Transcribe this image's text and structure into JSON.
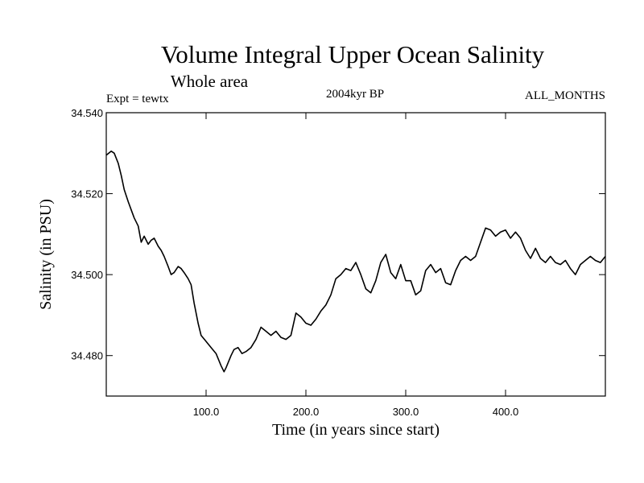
{
  "header": {
    "title": "Volume Integral Upper Ocean Salinity",
    "subtitle": "Whole area",
    "experiment": "Expt = tewtx",
    "period": "2004kyr BP",
    "months": "ALL_MONTHS"
  },
  "chart_data": {
    "type": "line",
    "title": "Volume Integral Upper Ocean Salinity",
    "xlabel": "Time (in years since start)",
    "ylabel": "Salinity (in PSU)",
    "xlim": [
      0,
      500
    ],
    "ylim": [
      34.47,
      34.54
    ],
    "x_ticks": [
      100,
      200,
      300,
      400
    ],
    "x_tick_labels": [
      "100.0",
      "200.0",
      "300.0",
      "400.0"
    ],
    "y_ticks": [
      34.48,
      34.5,
      34.52,
      34.54
    ],
    "y_tick_labels": [
      "34.480",
      "34.500",
      "34.520",
      "34.540"
    ],
    "grid": false,
    "series": [
      {
        "name": "Salinity",
        "color": "#000000",
        "x": [
          0,
          5,
          8,
          12,
          15,
          18,
          22,
          25,
          28,
          32,
          35,
          38,
          42,
          45,
          48,
          52,
          55,
          58,
          62,
          65,
          68,
          72,
          75,
          78,
          82,
          85,
          88,
          92,
          95,
          100,
          105,
          110,
          115,
          118,
          120,
          125,
          128,
          132,
          136,
          140,
          145,
          150,
          155,
          160,
          165,
          170,
          175,
          180,
          185,
          190,
          195,
          200,
          205,
          210,
          215,
          220,
          225,
          230,
          235,
          240,
          245,
          250,
          255,
          260,
          265,
          270,
          275,
          280,
          285,
          290,
          295,
          300,
          305,
          310,
          315,
          320,
          325,
          330,
          335,
          340,
          345,
          350,
          355,
          360,
          365,
          370,
          375,
          380,
          385,
          390,
          395,
          400,
          405,
          410,
          415,
          420,
          425,
          430,
          435,
          440,
          445,
          450,
          455,
          460,
          465,
          470,
          475,
          480,
          485,
          490,
          495,
          500
        ],
        "values": [
          34.5295,
          34.5305,
          34.53,
          34.5275,
          34.5245,
          34.521,
          34.518,
          34.516,
          34.514,
          34.512,
          34.508,
          34.5095,
          34.5075,
          34.5085,
          34.509,
          34.507,
          34.506,
          34.5045,
          34.502,
          34.5,
          34.5005,
          34.502,
          34.5015,
          34.5005,
          34.499,
          34.4975,
          34.493,
          34.488,
          34.485,
          34.4835,
          34.482,
          34.4805,
          34.4775,
          34.476,
          34.477,
          34.48,
          34.4815,
          34.482,
          34.4805,
          34.481,
          34.482,
          34.484,
          34.487,
          34.486,
          34.485,
          34.486,
          34.4845,
          34.484,
          34.485,
          34.4905,
          34.4895,
          34.488,
          34.4875,
          34.489,
          34.491,
          34.4925,
          34.495,
          34.499,
          34.5,
          34.5015,
          34.501,
          34.503,
          34.5,
          34.4965,
          34.4955,
          34.4985,
          34.503,
          34.505,
          34.5005,
          34.499,
          34.5025,
          34.4985,
          34.4985,
          34.495,
          34.496,
          34.501,
          34.5025,
          34.5005,
          34.5015,
          34.498,
          34.4975,
          34.501,
          34.5035,
          34.5045,
          34.5035,
          34.5045,
          34.508,
          34.5115,
          34.511,
          34.5095,
          34.5105,
          34.511,
          34.509,
          34.5105,
          34.509,
          34.506,
          34.504,
          34.5065,
          34.504,
          34.503,
          34.5045,
          34.503,
          34.5025,
          34.5035,
          34.5015,
          34.5,
          34.5025,
          34.5035,
          34.5045,
          34.5035,
          34.503,
          34.5045
        ]
      }
    ]
  }
}
